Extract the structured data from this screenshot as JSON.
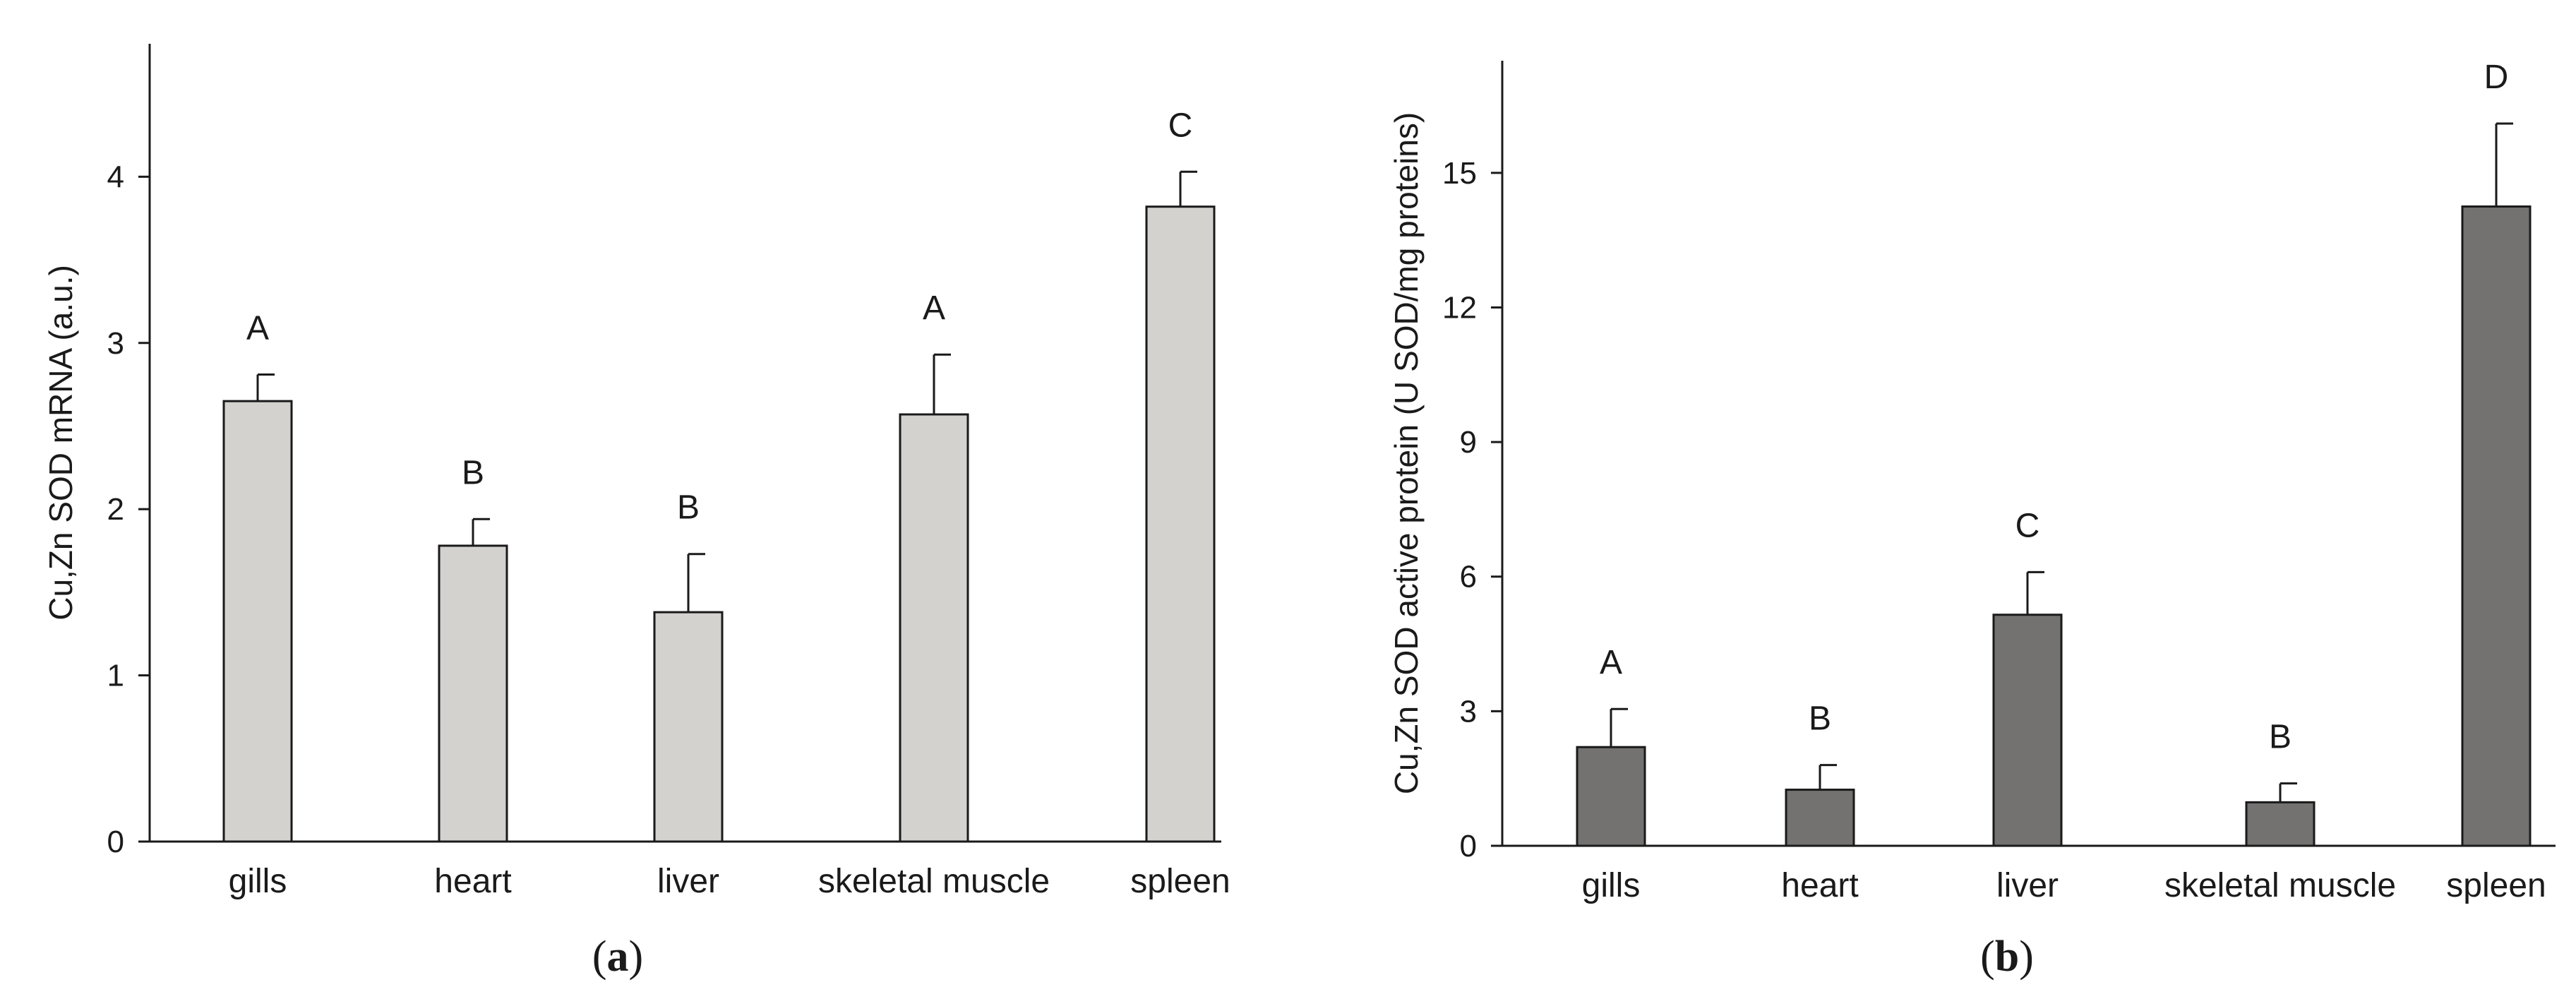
{
  "chart_data": [
    {
      "type": "bar",
      "panel_label": "(a)",
      "panel_letter": "a",
      "ylabel": "Cu,Zn SOD mRNA (a.u.)",
      "xlabel": "",
      "categories": [
        "gills",
        "heart",
        "liver",
        "skeletal muscle",
        "spleen"
      ],
      "values": [
        2.65,
        1.78,
        1.38,
        2.57,
        3.82
      ],
      "errors": [
        0.16,
        0.16,
        0.35,
        0.36,
        0.21
      ],
      "significance": [
        "A",
        "B",
        "B",
        "A",
        "C"
      ],
      "ylim": [
        0,
        4.8
      ],
      "yticks": [
        0,
        1,
        2,
        3,
        4
      ],
      "ytick_labels": [
        "0",
        "1",
        "2",
        "3",
        "4"
      ],
      "bar_color": "#d4d2cf",
      "grid": false
    },
    {
      "type": "bar",
      "panel_label": "(b)",
      "panel_letter": "b",
      "ylabel": "Cu,Zn SOD active protein (U SOD/mg proteins)",
      "xlabel": "",
      "categories": [
        "gills",
        "heart",
        "liver",
        "skeletal muscle",
        "spleen"
      ],
      "values": [
        2.2,
        1.25,
        5.15,
        0.97,
        14.25
      ],
      "errors": [
        0.85,
        0.55,
        0.95,
        0.42,
        1.85
      ],
      "significance": [
        "A",
        "B",
        "C",
        "B",
        "D"
      ],
      "ylim": [
        0,
        17.5
      ],
      "yticks": [
        0,
        3,
        6,
        9,
        12,
        15
      ],
      "ytick_labels": [
        "0",
        "3",
        "6",
        "9",
        "12",
        "15"
      ],
      "bar_color": "#747270",
      "grid": false
    }
  ]
}
